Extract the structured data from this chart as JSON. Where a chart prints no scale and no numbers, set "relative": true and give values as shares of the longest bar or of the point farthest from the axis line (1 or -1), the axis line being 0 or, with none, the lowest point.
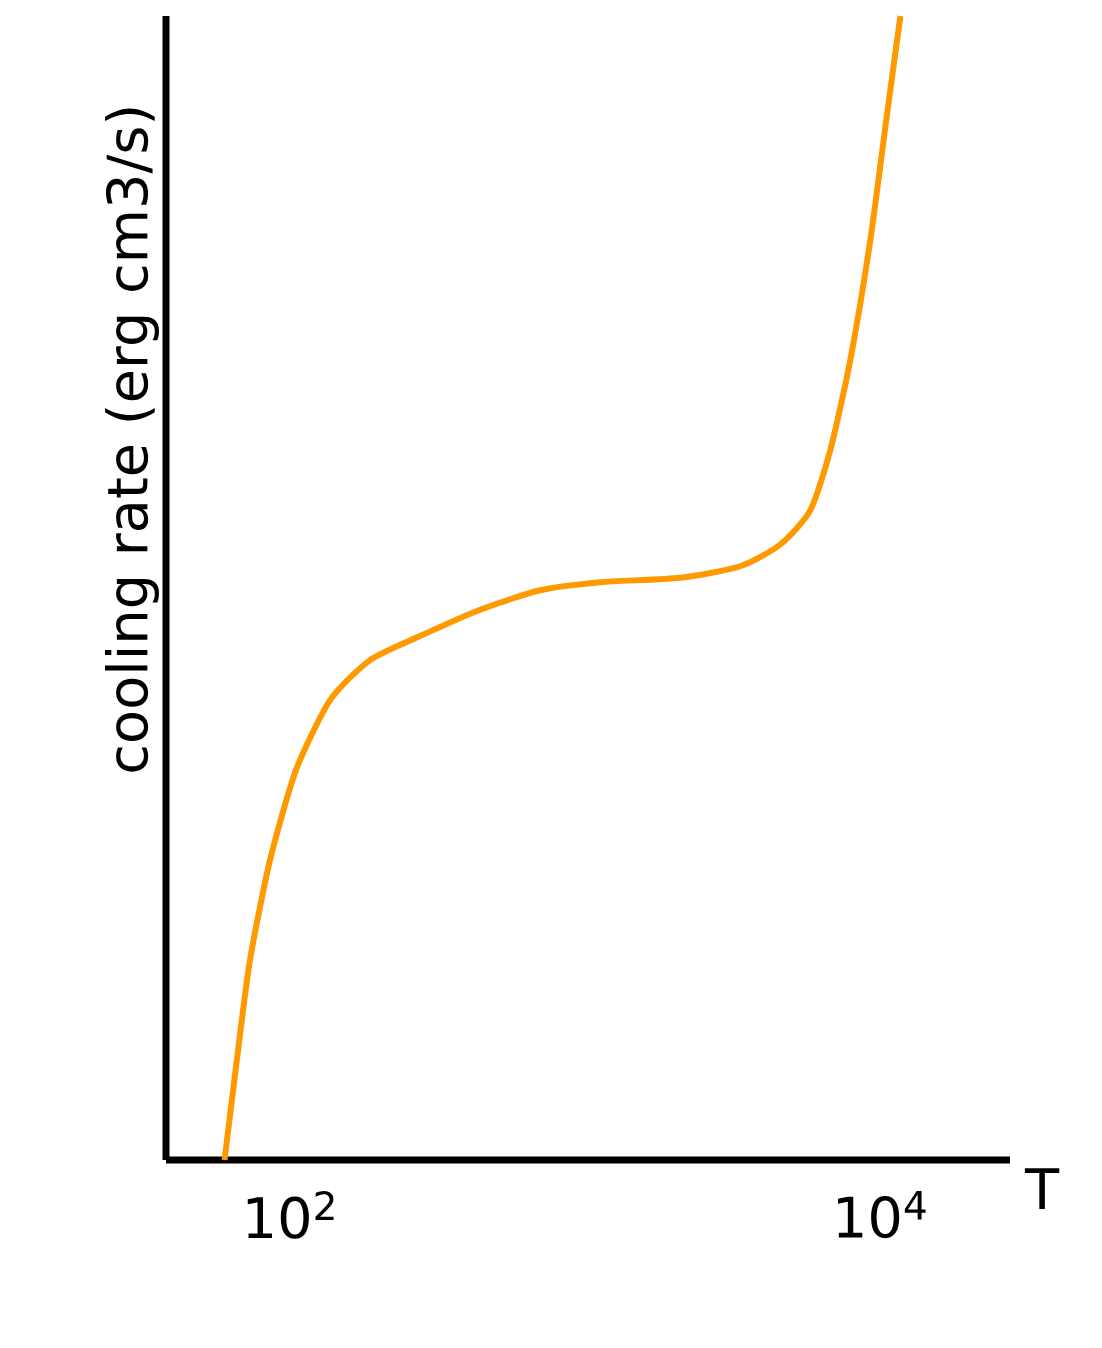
{
  "chart_data": {
    "type": "line",
    "xlabel": "T",
    "ylabel": "cooling rate (erg cm3/s)",
    "relative": true,
    "log": "x",
    "xlim": [
      38,
      27500
    ],
    "xticks": [
      {
        "value": 100,
        "label": "10$^{2}$"
      },
      {
        "value": 10000,
        "label": "10$^{4}$"
      }
    ],
    "x": [
      60,
      66,
      73.2,
      85.5,
      104.8,
      136.7,
      186.7,
      275.8,
      440.6,
      704,
      1124,
      2099,
      3351,
      4581,
      5794,
      6776,
      7907,
      9247,
      10471,
      11695
    ],
    "series": [
      {
        "color": "#ff9900",
        "values": [
          0,
          0.087,
          0.175,
          0.262,
          0.341,
          0.402,
          0.437,
          0.458,
          0.481,
          0.498,
          0.505,
          0.509,
          0.519,
          0.538,
          0.568,
          0.621,
          0.699,
          0.804,
          0.909,
          1
        ]
      }
    ]
  }
}
